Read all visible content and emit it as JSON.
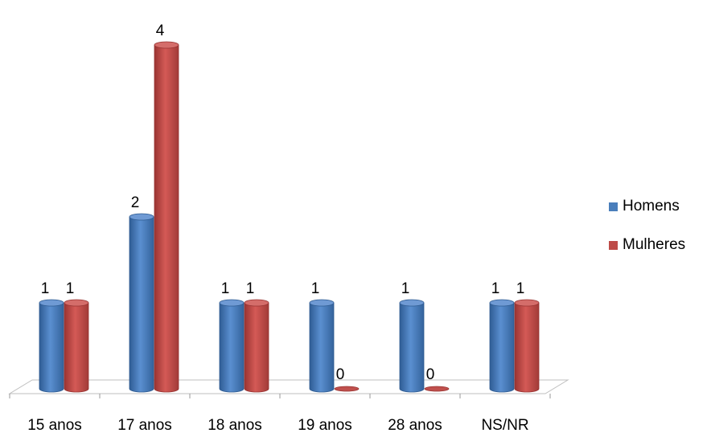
{
  "chart_data": {
    "type": "bar",
    "categories": [
      "15 anos",
      "17 anos",
      "18 anos",
      "19 anos",
      "28 anos",
      "NS/NR"
    ],
    "series": [
      {
        "name": "Homens",
        "values": [
          1,
          2,
          1,
          1,
          1,
          1
        ],
        "color": "#4a7ebb"
      },
      {
        "name": "Mulheres",
        "values": [
          1,
          4,
          1,
          0,
          0,
          1
        ],
        "color": "#be4b48"
      }
    ],
    "data_labels": true,
    "legend": "right",
    "grid": false,
    "ylim": [
      0,
      4
    ]
  }
}
